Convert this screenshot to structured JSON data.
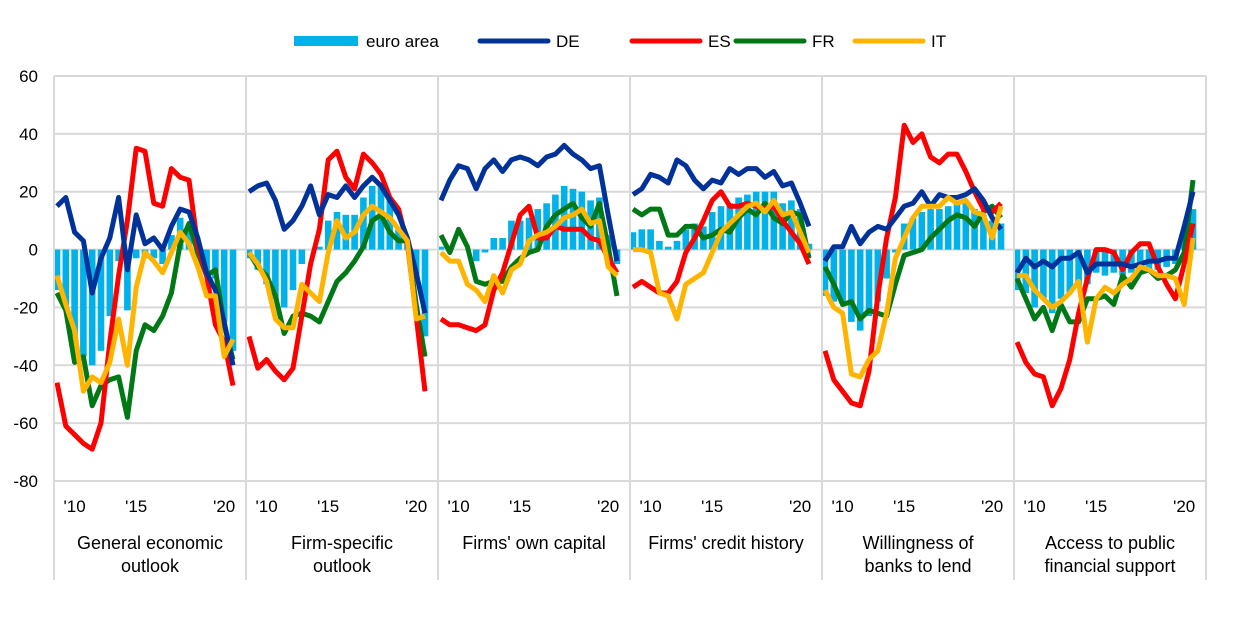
{
  "chart_data": {
    "type": "bar+line",
    "title": "",
    "ylim": [
      -80,
      60
    ],
    "yticks": [
      60,
      40,
      20,
      0,
      -20,
      -40,
      -60,
      -80
    ],
    "grid": true,
    "legend_placement": "top-center",
    "legend": [
      {
        "name": "euro area",
        "kind": "bar",
        "color": "#00B1EA"
      },
      {
        "name": "DE",
        "kind": "line",
        "color": "#003299"
      },
      {
        "name": "ES",
        "kind": "line",
        "color": "#FF0000"
      },
      {
        "name": "FR",
        "kind": "line",
        "color": "#007816"
      },
      {
        "name": "IT",
        "kind": "line",
        "color": "#FFB400"
      }
    ],
    "xticks": [
      {
        "label": "'10",
        "index": 2
      },
      {
        "label": "'15",
        "index": 9
      },
      {
        "label": "'20",
        "index": 19
      }
    ],
    "panels": [
      {
        "label": [
          "General economic",
          "outlook"
        ],
        "euro_area": [
          -14,
          -20,
          -30,
          -37,
          -40,
          -35,
          -23,
          -4,
          -21,
          -3,
          -3,
          -3,
          -5,
          5,
          11,
          7,
          -3,
          -8,
          -10,
          -25,
          -35
        ],
        "DE": [
          15,
          18,
          6,
          3,
          -15,
          -3,
          4,
          18,
          -7,
          12,
          2,
          4,
          0,
          8,
          14,
          13,
          4,
          -8,
          -14,
          -25,
          -40
        ],
        "ES": [
          -46,
          -61,
          -64,
          -67,
          -69,
          -60,
          -32,
          -9,
          10,
          35,
          34,
          16,
          15,
          28,
          25,
          24,
          1,
          -9,
          -26,
          -32,
          -47
        ],
        "FR": [
          -15,
          -21,
          -39,
          -37,
          -54,
          -47,
          -45,
          -44,
          -58,
          -35,
          -26,
          -28,
          -23,
          -15,
          2,
          9,
          -1,
          -9,
          -7,
          -26,
          -38
        ],
        "IT": [
          -9,
          -19,
          -28,
          -49,
          -44,
          -46,
          -39,
          -24,
          -40,
          -13,
          -1,
          -4,
          -8,
          -1,
          6,
          2,
          -6,
          -16,
          -16,
          -37,
          -31
        ]
      },
      {
        "label": [
          "Firm-specific",
          "outlook"
        ],
        "euro_area": [
          -3,
          -7,
          -12,
          -17,
          -20,
          -14,
          -5,
          0,
          1,
          10,
          13,
          12,
          12,
          18,
          22,
          22,
          17,
          7,
          2,
          -10,
          -30
        ],
        "DE": [
          20,
          22,
          23,
          17,
          7,
          10,
          15,
          22,
          12,
          19,
          18,
          22,
          18,
          22,
          25,
          22,
          17,
          12,
          4,
          -8,
          -22
        ],
        "ES": [
          -30,
          -41,
          -38,
          -42,
          -45,
          -41,
          -23,
          -5,
          7,
          31,
          34,
          25,
          21,
          33,
          30,
          26,
          18,
          14,
          2,
          -23,
          -49
        ],
        "FR": [
          -1,
          -6,
          -9,
          -16,
          -29,
          -23,
          -22,
          -23,
          -25,
          -18,
          -11,
          -8,
          -4,
          1,
          10,
          12,
          6,
          3,
          3,
          -19,
          -37
        ],
        "IT": [
          -1,
          -5,
          -11,
          -24,
          -27,
          -27,
          -12,
          -15,
          -18,
          -1,
          10,
          4,
          6,
          12,
          15,
          13,
          11,
          7,
          3,
          -24,
          -23
        ]
      },
      {
        "label": [
          "Firms' own capital"
        ],
        "euro_area": [
          1,
          0,
          0,
          0,
          -4,
          -1,
          4,
          4,
          10,
          10,
          11,
          14,
          16,
          19,
          22,
          21,
          20,
          17,
          18,
          5,
          -5
        ],
        "DE": [
          17,
          24,
          29,
          28,
          21,
          28,
          31,
          27,
          31,
          32,
          31,
          29,
          32,
          33,
          36,
          33,
          31,
          28,
          29,
          12,
          -4
        ],
        "ES": [
          -24,
          -26,
          -26,
          -27,
          -28,
          -26,
          -14,
          -8,
          2,
          12,
          15,
          4,
          4,
          8,
          7,
          7,
          7,
          4,
          3,
          -3,
          -8
        ],
        "FR": [
          5,
          -1,
          7,
          1,
          -11,
          -12,
          -11,
          -11,
          -6,
          -3,
          -1,
          0,
          8,
          12,
          14,
          16,
          11,
          8,
          16,
          1,
          -16
        ],
        "IT": [
          -1,
          -4,
          -4,
          -12,
          -14,
          -18,
          -9,
          -15,
          -7,
          -5,
          3,
          5,
          6,
          8,
          11,
          12,
          14,
          9,
          10,
          -6,
          -9
        ]
      },
      {
        "label": [
          "Firms' credit history"
        ],
        "euro_area": [
          6,
          7,
          7,
          3,
          1,
          3,
          7,
          9,
          8,
          13,
          15,
          16,
          18,
          19,
          20,
          20,
          20,
          16,
          17,
          14,
          2
        ],
        "DE": [
          19,
          21,
          26,
          25,
          23,
          31,
          29,
          24,
          21,
          24,
          23,
          28,
          26,
          28,
          28,
          25,
          27,
          22,
          23,
          16,
          8
        ],
        "ES": [
          -13,
          -11,
          -13,
          -15,
          -15,
          -11,
          -1,
          4,
          10,
          17,
          20,
          15,
          15,
          16,
          15,
          14,
          15,
          10,
          6,
          2,
          -5
        ],
        "FR": [
          14,
          12,
          14,
          14,
          5,
          5,
          8,
          8,
          4,
          5,
          7,
          6,
          11,
          14,
          12,
          16,
          11,
          9,
          13,
          12,
          -3
        ],
        "IT": [
          0,
          0,
          -1,
          -15,
          -16,
          -24,
          -12,
          -10,
          -8,
          -1,
          6,
          9,
          12,
          15,
          16,
          13,
          17,
          12,
          13,
          6,
          -1
        ]
      },
      {
        "label": [
          "Willingness of",
          "banks to lend"
        ],
        "euro_area": [
          -16,
          -18,
          -18,
          -25,
          -28,
          -23,
          -18,
          -10,
          -1,
          9,
          11,
          13,
          14,
          14,
          15,
          16,
          16,
          14,
          12,
          10,
          9
        ],
        "DE": [
          -4,
          1,
          1,
          8,
          2,
          6,
          8,
          7,
          11,
          15,
          16,
          20,
          15,
          19,
          18,
          18,
          19,
          21,
          17,
          11,
          7
        ],
        "ES": [
          -35,
          -45,
          -49,
          -53,
          -54,
          -42,
          -16,
          4,
          18,
          43,
          37,
          40,
          32,
          30,
          33,
          33,
          27,
          20,
          14,
          13,
          16
        ],
        "FR": [
          -6,
          -12,
          -19,
          -18,
          -24,
          -21,
          -22,
          -23,
          -12,
          -2,
          -1,
          0,
          4,
          7,
          10,
          12,
          11,
          8,
          13,
          15,
          11
        ],
        "IT": [
          -14,
          -20,
          -22,
          -43,
          -44,
          -38,
          -35,
          -22,
          -3,
          4,
          11,
          15,
          15,
          15,
          18,
          16,
          17,
          13,
          12,
          4,
          15
        ]
      },
      {
        "label": [
          "Access to public",
          "financial support"
        ],
        "euro_area": [
          -14,
          -15,
          -20,
          -17,
          -22,
          -17,
          -15,
          -13,
          -12,
          -8,
          -9,
          -8,
          -9,
          -8,
          -6,
          -7,
          -7,
          -6,
          -5,
          6,
          14
        ],
        "DE": [
          -8,
          -3,
          -6,
          -4,
          -6,
          -3,
          -3,
          -1,
          -8,
          -5,
          -5,
          -5,
          -5,
          -6,
          -5,
          -4,
          -4,
          -3,
          -3,
          8,
          20
        ],
        "ES": [
          -32,
          -39,
          -43,
          -44,
          -54,
          -48,
          -38,
          -22,
          -10,
          0,
          0,
          -1,
          -7,
          -1,
          2,
          2,
          -6,
          -12,
          -17,
          -5,
          9
        ],
        "FR": [
          -10,
          -17,
          -24,
          -20,
          -28,
          -19,
          -25,
          -25,
          -17,
          -17,
          -16,
          -19,
          -9,
          -13,
          -8,
          -7,
          -10,
          -9,
          -7,
          -1,
          24
        ],
        "IT": [
          -9,
          -9,
          -14,
          -17,
          -20,
          -18,
          -15,
          -11,
          -32,
          -17,
          -13,
          -15,
          -12,
          -10,
          -6,
          -7,
          -9,
          -9,
          -10,
          -19,
          4
        ]
      }
    ]
  }
}
